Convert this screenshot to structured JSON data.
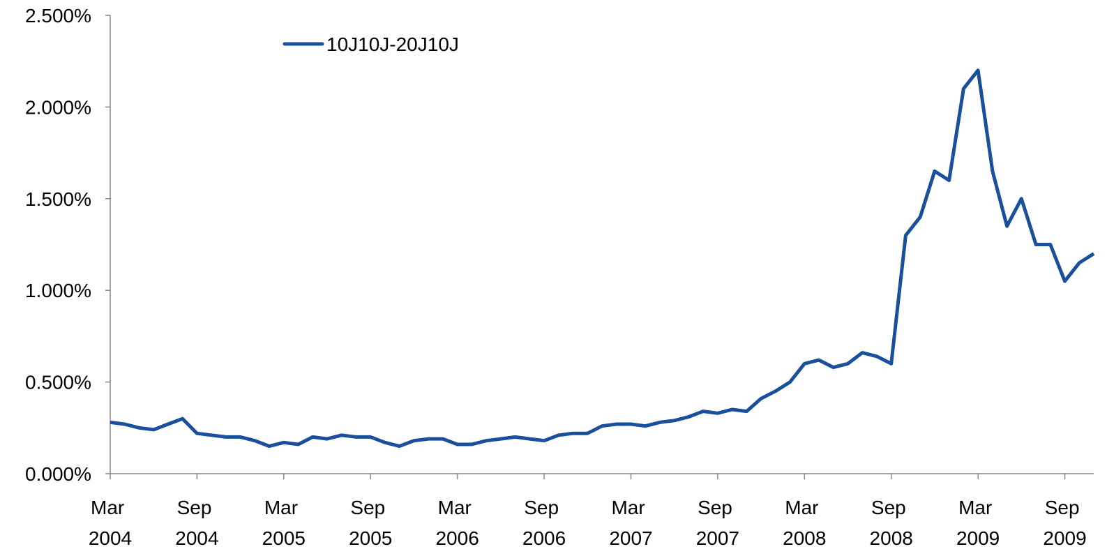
{
  "chart_data": {
    "type": "line",
    "x": [
      "2004-03",
      "2004-04",
      "2004-05",
      "2004-06",
      "2004-07",
      "2004-08",
      "2004-09",
      "2004-10",
      "2004-11",
      "2004-12",
      "2005-01",
      "2005-02",
      "2005-03",
      "2005-04",
      "2005-05",
      "2005-06",
      "2005-07",
      "2005-08",
      "2005-09",
      "2005-10",
      "2005-11",
      "2005-12",
      "2006-01",
      "2006-02",
      "2006-03",
      "2006-04",
      "2006-05",
      "2006-06",
      "2006-07",
      "2006-08",
      "2006-09",
      "2006-10",
      "2006-11",
      "2006-12",
      "2007-01",
      "2007-02",
      "2007-03",
      "2007-04",
      "2007-05",
      "2007-06",
      "2007-07",
      "2007-08",
      "2007-09",
      "2007-10",
      "2007-11",
      "2007-12",
      "2008-01",
      "2008-02",
      "2008-03",
      "2008-04",
      "2008-05",
      "2008-06",
      "2008-07",
      "2008-08",
      "2008-09",
      "2008-10",
      "2008-11",
      "2008-12",
      "2009-01",
      "2009-02",
      "2009-03",
      "2009-04",
      "2009-05",
      "2009-06",
      "2009-07",
      "2009-08",
      "2009-09",
      "2009-10",
      "2009-11"
    ],
    "series": [
      {
        "name": "10J10J-20J10J",
        "color": "#1a4f9c",
        "values": [
          0.28,
          0.27,
          0.25,
          0.24,
          0.27,
          0.3,
          0.22,
          0.21,
          0.2,
          0.2,
          0.18,
          0.15,
          0.17,
          0.16,
          0.2,
          0.19,
          0.21,
          0.2,
          0.2,
          0.17,
          0.15,
          0.18,
          0.19,
          0.19,
          0.16,
          0.16,
          0.18,
          0.19,
          0.2,
          0.19,
          0.18,
          0.21,
          0.22,
          0.22,
          0.26,
          0.27,
          0.27,
          0.26,
          0.28,
          0.29,
          0.31,
          0.34,
          0.33,
          0.35,
          0.34,
          0.41,
          0.45,
          0.5,
          0.6,
          0.62,
          0.58,
          0.6,
          0.66,
          0.64,
          0.6,
          1.3,
          1.4,
          1.65,
          1.6,
          2.1,
          2.2,
          1.65,
          1.35,
          1.5,
          1.25,
          1.25,
          1.05,
          1.15,
          1.2
        ]
      }
    ],
    "xlim": [
      "2004-03",
      "2009-11"
    ],
    "xticks": [
      {
        "value": "2004-03",
        "label": "Mar 2004"
      },
      {
        "value": "2004-09",
        "label": "Sep 2004"
      },
      {
        "value": "2005-03",
        "label": "Mar 2005"
      },
      {
        "value": "2005-09",
        "label": "Sep 2005"
      },
      {
        "value": "2006-03",
        "label": "Mar 2006"
      },
      {
        "value": "2006-09",
        "label": "Sep 2006"
      },
      {
        "value": "2007-03",
        "label": "Mar 2007"
      },
      {
        "value": "2007-09",
        "label": "Sep 2007"
      },
      {
        "value": "2008-03",
        "label": "Mar 2008"
      },
      {
        "value": "2008-09",
        "label": "Sep 2008"
      },
      {
        "value": "2009-03",
        "label": "Mar 2009"
      },
      {
        "value": "2009-09",
        "label": "Sep 2009"
      }
    ],
    "ylim": [
      0,
      2.5
    ],
    "yticks": [
      {
        "value": 0,
        "label": "0.000%"
      },
      {
        "value": 0.5,
        "label": "0.500%"
      },
      {
        "value": 1,
        "label": "1.000%"
      },
      {
        "value": 1.5,
        "label": "1.500%"
      },
      {
        "value": 2,
        "label": "2.000%"
      },
      {
        "value": 2.5,
        "label": "2.500%"
      }
    ],
    "grid": false,
    "legend": "top-left"
  }
}
